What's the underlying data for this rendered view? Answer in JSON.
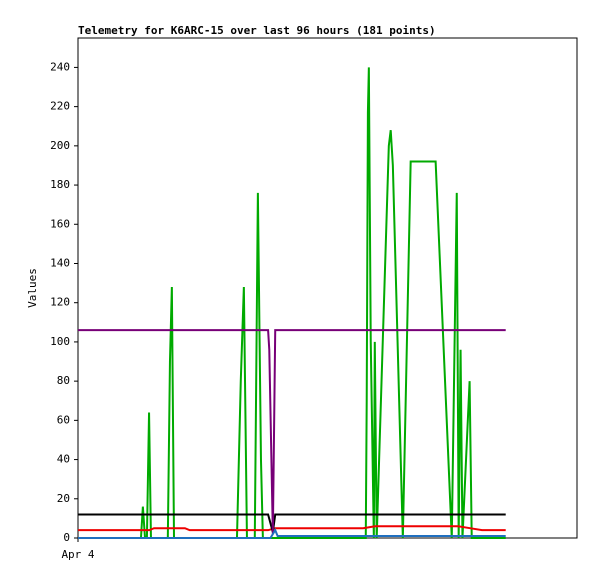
{
  "chart_data": {
    "type": "line",
    "title": "Telemetry for K6ARC-15 over last 96 hours (181 points)",
    "y_label": "Values",
    "xlim": [
      0,
      210
    ],
    "xticks": [
      {
        "value": 0,
        "label": "Apr 4"
      }
    ],
    "ylim": [
      0,
      255
    ],
    "yticks": [
      0,
      20,
      40,
      60,
      80,
      100,
      120,
      140,
      160,
      180,
      200,
      220,
      240
    ],
    "grid": false,
    "series": [
      {
        "name": "series-green",
        "color": "#00aa00",
        "x": [
          0,
          26.5,
          27.3,
          28.2,
          29,
          29.9,
          30.7,
          37.8,
          38.7,
          39.5,
          40.4,
          66.9,
          68.5,
          69.8,
          71.1,
          74.4,
          75.7,
          77,
          77.8,
          121.1,
          121.5,
          122,
          122.4,
          123.2,
          124.5,
          124.9,
          125.7,
          130.8,
          131.6,
          132.5,
          136.7,
          140,
          150.5,
          157.3,
          159.4,
          160.2,
          161,
          161.8,
          164.8,
          165.7,
          180
        ],
        "values": [
          0,
          0,
          16,
          0,
          0,
          64,
          0,
          0,
          90,
          128,
          0,
          0,
          80,
          128,
          0,
          0,
          176,
          40,
          0,
          0,
          70,
          217,
          240,
          100,
          0,
          100,
          0,
          200,
          208,
          190,
          0,
          192,
          192,
          0,
          176,
          0,
          96,
          0,
          80,
          0,
          0
        ]
      },
      {
        "name": "series-red",
        "color": "#ee0000",
        "x": [
          0,
          30,
          32,
          45,
          47,
          80,
          83,
          120,
          125,
          160,
          165,
          170,
          180
        ],
        "values": [
          4,
          4,
          5,
          5,
          4,
          4,
          5,
          5,
          6,
          6,
          5,
          4,
          4
        ]
      },
      {
        "name": "series-black",
        "color": "#000000",
        "x": [
          0,
          80,
          82,
          83,
          180
        ],
        "values": [
          12,
          12,
          3,
          12,
          12
        ]
      },
      {
        "name": "series-purple",
        "color": "#770077",
        "x": [
          0,
          80,
          80.5,
          82,
          83,
          180
        ],
        "values": [
          106,
          106,
          96,
          2,
          106,
          106
        ]
      },
      {
        "name": "series-blue",
        "color": "#1f6fbf",
        "x": [
          0,
          81,
          83,
          84,
          180
        ],
        "values": [
          0,
          0,
          4,
          1,
          1
        ]
      }
    ]
  }
}
